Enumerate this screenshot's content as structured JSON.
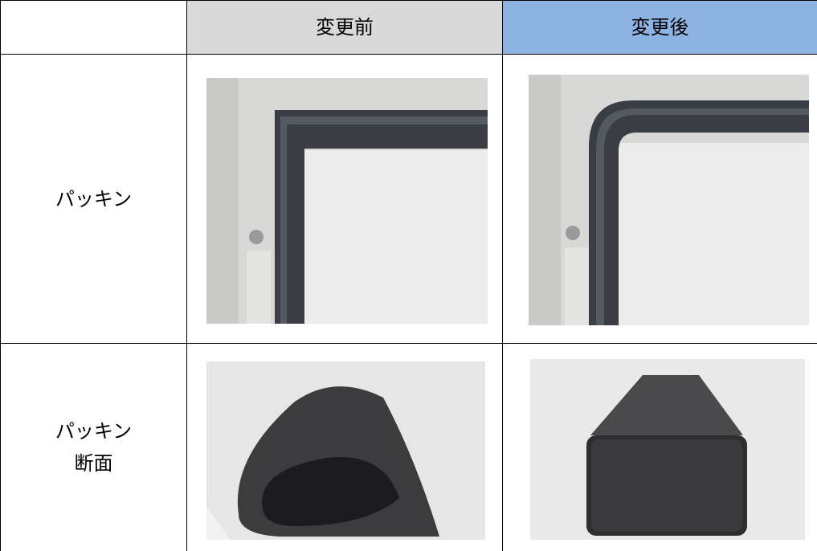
{
  "table": {
    "header": [
      "変更前",
      "変更後"
    ],
    "rows": [
      {
        "label": [
          "パッキン"
        ]
      },
      {
        "label": [
          "パッキン",
          "断面"
        ]
      }
    ]
  }
}
